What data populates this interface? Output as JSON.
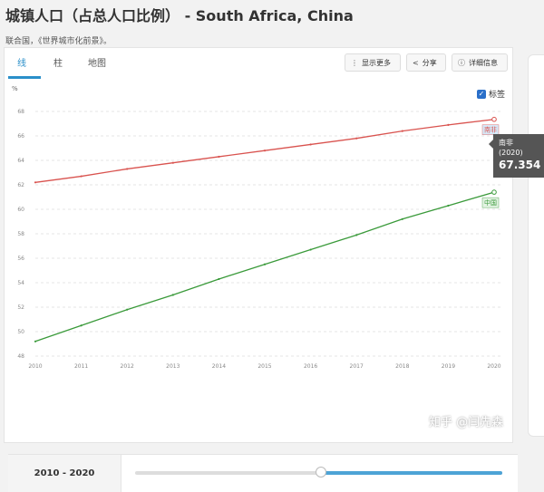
{
  "title": "城镇人口（占总人口比例） - South Africa, China",
  "source": "联合国，《世界城市化前景》。",
  "tabs": [
    {
      "label": "线",
      "active": true
    },
    {
      "label": "柱",
      "active": false
    },
    {
      "label": "地图",
      "active": false
    }
  ],
  "toolbar": {
    "more_label": "显示更多",
    "share_label": "分享",
    "details_label": "详细信息"
  },
  "labels_toggle": {
    "label": "标签",
    "checked": true
  },
  "tooltip": {
    "name": "南非",
    "year": "(2020)",
    "value": "67.354"
  },
  "footer": {
    "range_label": "2010 - 2020",
    "slider_position": 0.5
  },
  "watermark": "知乎 @闫先森",
  "colors": {
    "south_africa": "#d9534f",
    "china": "#3a9a3a",
    "accent": "#2a8fc9"
  },
  "chart_data": {
    "type": "line",
    "ylabel": "%",
    "x": [
      "2010",
      "2011",
      "2012",
      "2013",
      "2014",
      "2015",
      "2016",
      "2017",
      "2018",
      "2019",
      "2020"
    ],
    "ylim": [
      48,
      68
    ],
    "yticks": [
      48,
      50,
      52,
      54,
      56,
      58,
      60,
      62,
      64,
      66,
      68
    ],
    "grid": true,
    "series": [
      {
        "name": "南非",
        "color": "#d9534f",
        "label_bg": "#d6e8f7",
        "values": [
          62.2,
          62.7,
          63.3,
          63.8,
          64.3,
          64.8,
          65.3,
          65.8,
          66.4,
          66.9,
          67.354
        ]
      },
      {
        "name": "中国",
        "color": "#3a9a3a",
        "label_bg": "#e3f3e3",
        "values": [
          49.2,
          50.5,
          51.8,
          53.0,
          54.3,
          55.5,
          56.7,
          57.9,
          59.2,
          60.3,
          61.4
        ]
      }
    ]
  }
}
